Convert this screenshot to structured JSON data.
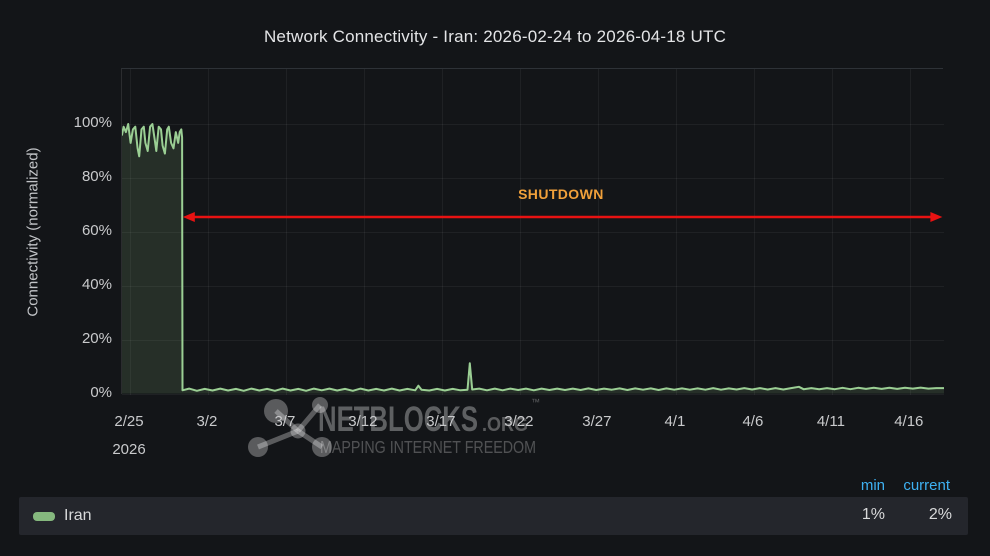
{
  "title": "Network Connectivity - Iran: 2026-02-24 to 2026-04-18 UTC",
  "colors": {
    "background": "#131518",
    "legend_row_bg": "#24262c",
    "series_line": "#9bcf94",
    "series_fill": "rgba(134,178,126,0.17)",
    "annotation_red": "#e81212",
    "annotation_orange": "#f0a03a",
    "legend_header_blue": "#3eb1f2",
    "tick_text": "#c9cacc"
  },
  "watermark": {
    "line1": "NETBLOCKS",
    "line1_suffix": ".ORG",
    "tm": "™",
    "line2": "MAPPING INTERNET FREEDOM"
  },
  "legend": {
    "headers": {
      "min": "min",
      "current": "current"
    },
    "series": [
      {
        "label": "Iran",
        "swatch_color": "#85b87e",
        "min": "1%",
        "current": "2%"
      }
    ]
  },
  "chart_data": {
    "type": "area",
    "title": "Network Connectivity - Iran: 2026-02-24 to 2026-04-18 UTC",
    "xlabel": "",
    "ylabel": "Connectivity (normalized)",
    "x_axis": {
      "start_date": "2026-02-24",
      "end_date": "2026-04-18",
      "span_days": 52.7,
      "ticks": [
        {
          "label": "2/25",
          "t": 0.51,
          "sub": "2026"
        },
        {
          "label": "3/2",
          "t": 5.51
        },
        {
          "label": "3/7",
          "t": 10.51
        },
        {
          "label": "3/12",
          "t": 15.51
        },
        {
          "label": "3/17",
          "t": 20.51
        },
        {
          "label": "3/22",
          "t": 25.51
        },
        {
          "label": "3/27",
          "t": 30.51
        },
        {
          "label": "4/1",
          "t": 35.51
        },
        {
          "label": "4/6",
          "t": 40.51
        },
        {
          "label": "4/11",
          "t": 45.51
        },
        {
          "label": "4/16",
          "t": 50.51
        }
      ]
    },
    "y_axis": {
      "unit": "%",
      "ticks": [
        0,
        20,
        40,
        60,
        80,
        100
      ],
      "ylim": [
        0,
        120
      ]
    },
    "grid": true,
    "legend_position": "bottom",
    "series": [
      {
        "name": "Iran",
        "color": "#9bcf94",
        "fill": "rgba(134,178,126,0.17)",
        "stats": {
          "min": "1%",
          "current": "2%"
        },
        "points": [
          [
            0,
            96
          ],
          [
            0.1,
            99
          ],
          [
            0.25,
            97
          ],
          [
            0.4,
            100
          ],
          [
            0.55,
            93
          ],
          [
            0.7,
            98
          ],
          [
            0.85,
            99
          ],
          [
            1.0,
            91
          ],
          [
            1.1,
            88
          ],
          [
            1.25,
            98
          ],
          [
            1.4,
            99
          ],
          [
            1.5,
            93
          ],
          [
            1.65,
            90
          ],
          [
            1.8,
            99
          ],
          [
            1.95,
            100
          ],
          [
            2.1,
            94
          ],
          [
            2.2,
            90
          ],
          [
            2.35,
            99
          ],
          [
            2.5,
            98
          ],
          [
            2.6,
            92
          ],
          [
            2.75,
            89
          ],
          [
            2.9,
            98
          ],
          [
            3.0,
            99
          ],
          [
            3.15,
            93
          ],
          [
            3.3,
            91
          ],
          [
            3.45,
            97
          ],
          [
            3.6,
            93
          ],
          [
            3.7,
            97
          ],
          [
            3.8,
            98
          ],
          [
            3.85,
            95
          ],
          [
            3.88,
            1.2
          ],
          [
            4.3,
            1.8
          ],
          [
            4.8,
            1.0
          ],
          [
            5.3,
            1.7
          ],
          [
            5.8,
            1.1
          ],
          [
            6.3,
            1.8
          ],
          [
            6.8,
            1.1
          ],
          [
            7.3,
            1.7
          ],
          [
            7.8,
            1.0
          ],
          [
            8.3,
            1.8
          ],
          [
            8.8,
            1.1
          ],
          [
            9.3,
            1.7
          ],
          [
            9.8,
            1.0
          ],
          [
            10.3,
            1.8
          ],
          [
            10.8,
            1.1
          ],
          [
            11.3,
            1.7
          ],
          [
            11.8,
            1.0
          ],
          [
            12.3,
            1.8
          ],
          [
            12.8,
            1.2
          ],
          [
            13.3,
            1.8
          ],
          [
            13.8,
            1.1
          ],
          [
            14.3,
            1.7
          ],
          [
            14.8,
            1.0
          ],
          [
            15.3,
            1.8
          ],
          [
            15.8,
            1.1
          ],
          [
            16.3,
            1.7
          ],
          [
            16.8,
            1.1
          ],
          [
            17.3,
            1.8
          ],
          [
            17.8,
            1.1
          ],
          [
            18.3,
            1.7
          ],
          [
            18.8,
            1.2
          ],
          [
            19.0,
            2.9
          ],
          [
            19.2,
            1.4
          ],
          [
            19.7,
            1.1
          ],
          [
            20.2,
            1.7
          ],
          [
            20.7,
            1.1
          ],
          [
            21.2,
            1.7
          ],
          [
            21.7,
            1.2
          ],
          [
            22.15,
            1.4
          ],
          [
            22.3,
            11.2
          ],
          [
            22.45,
            1.5
          ],
          [
            22.9,
            1.8
          ],
          [
            23.4,
            1.2
          ],
          [
            23.9,
            1.8
          ],
          [
            24.4,
            1.2
          ],
          [
            24.9,
            1.8
          ],
          [
            25.4,
            1.3
          ],
          [
            25.9,
            1.8
          ],
          [
            26.4,
            1.2
          ],
          [
            26.9,
            1.8
          ],
          [
            27.4,
            1.3
          ],
          [
            27.9,
            1.8
          ],
          [
            28.4,
            1.3
          ],
          [
            28.9,
            1.8
          ],
          [
            29.4,
            1.3
          ],
          [
            29.9,
            1.9
          ],
          [
            30.4,
            1.3
          ],
          [
            30.9,
            1.8
          ],
          [
            31.4,
            1.4
          ],
          [
            31.9,
            1.9
          ],
          [
            32.4,
            1.3
          ],
          [
            32.9,
            1.9
          ],
          [
            33.4,
            1.4
          ],
          [
            33.9,
            1.9
          ],
          [
            34.4,
            1.3
          ],
          [
            34.9,
            1.9
          ],
          [
            35.4,
            1.4
          ],
          [
            35.9,
            1.9
          ],
          [
            36.4,
            1.4
          ],
          [
            36.9,
            1.9
          ],
          [
            37.4,
            1.4
          ],
          [
            37.9,
            2.0
          ],
          [
            38.4,
            1.4
          ],
          [
            38.9,
            1.9
          ],
          [
            39.4,
            1.5
          ],
          [
            39.9,
            2.0
          ],
          [
            40.4,
            1.5
          ],
          [
            40.9,
            2.0
          ],
          [
            41.4,
            1.5
          ],
          [
            41.9,
            2.0
          ],
          [
            42.4,
            1.5
          ],
          [
            42.9,
            2.0
          ],
          [
            43.4,
            2.5
          ],
          [
            43.7,
            1.6
          ],
          [
            44.2,
            2.0
          ],
          [
            44.7,
            1.6
          ],
          [
            45.2,
            2.0
          ],
          [
            45.7,
            1.6
          ],
          [
            46.2,
            2.1
          ],
          [
            46.7,
            1.6
          ],
          [
            47.2,
            2.1
          ],
          [
            47.7,
            1.7
          ],
          [
            48.2,
            2.1
          ],
          [
            48.7,
            1.7
          ],
          [
            49.2,
            2.1
          ],
          [
            49.7,
            1.7
          ],
          [
            50.2,
            2.1
          ],
          [
            50.7,
            1.8
          ],
          [
            51.2,
            2.2
          ],
          [
            51.7,
            1.8
          ],
          [
            52.2,
            2.0
          ],
          [
            52.7,
            2.0
          ]
        ]
      }
    ],
    "annotation": {
      "label": "SHUTDOWN",
      "type": "double-headed-arrow",
      "y_value": 65.5,
      "t_start": 3.9,
      "t_end": 52.6,
      "label_t": 28.2,
      "line_color": "#e81212",
      "label_color": "#f0a03a"
    }
  }
}
